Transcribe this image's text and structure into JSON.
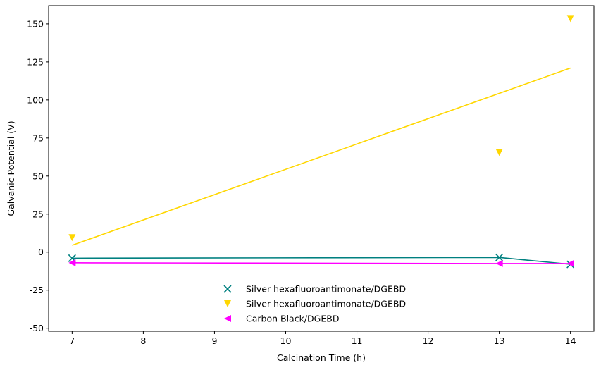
{
  "chart_data": {
    "type": "scatter",
    "title": "",
    "xlabel": "Calcination Time (h)",
    "ylabel": "Galvanic Potential (V)",
    "xlim": [
      6.67,
      14.33
    ],
    "ylim": [
      -52,
      162
    ],
    "xticks": [
      7,
      8,
      9,
      10,
      11,
      12,
      13,
      14
    ],
    "yticks": [
      -50,
      -25,
      0,
      25,
      50,
      75,
      100,
      125,
      150
    ],
    "grid": false,
    "legend_placement": "lower-center",
    "series": [
      {
        "name": "Silver hexafluoroantimonate/DGEBD",
        "marker": "x",
        "color": "#008080",
        "points": [
          [
            7,
            -4
          ],
          [
            13,
            -3.5
          ],
          [
            14,
            -8
          ]
        ],
        "line": {
          "kind": "connect",
          "points": [
            [
              7,
              -4
            ],
            [
              13,
              -3.5
            ],
            [
              14,
              -8
            ]
          ]
        }
      },
      {
        "name": "Silver hexafluoroantimonate/DGEBD",
        "marker": "triangle-down",
        "color": "#FFD700",
        "points": [
          [
            7,
            9.5
          ],
          [
            13,
            65.5
          ],
          [
            14,
            153.5
          ]
        ],
        "line": {
          "kind": "fit",
          "points": [
            [
              7,
              4.5
            ],
            [
              14,
              121
            ]
          ]
        }
      },
      {
        "name": "Carbon Black/DGEBD",
        "marker": "triangle-left",
        "color": "#FF00FF",
        "points": [
          [
            7,
            -7
          ],
          [
            13,
            -7.5
          ],
          [
            14,
            -7.5
          ]
        ],
        "line": {
          "kind": "connect",
          "points": [
            [
              7,
              -7
            ],
            [
              13,
              -7.5
            ],
            [
              14,
              -7.5
            ]
          ]
        }
      }
    ]
  }
}
